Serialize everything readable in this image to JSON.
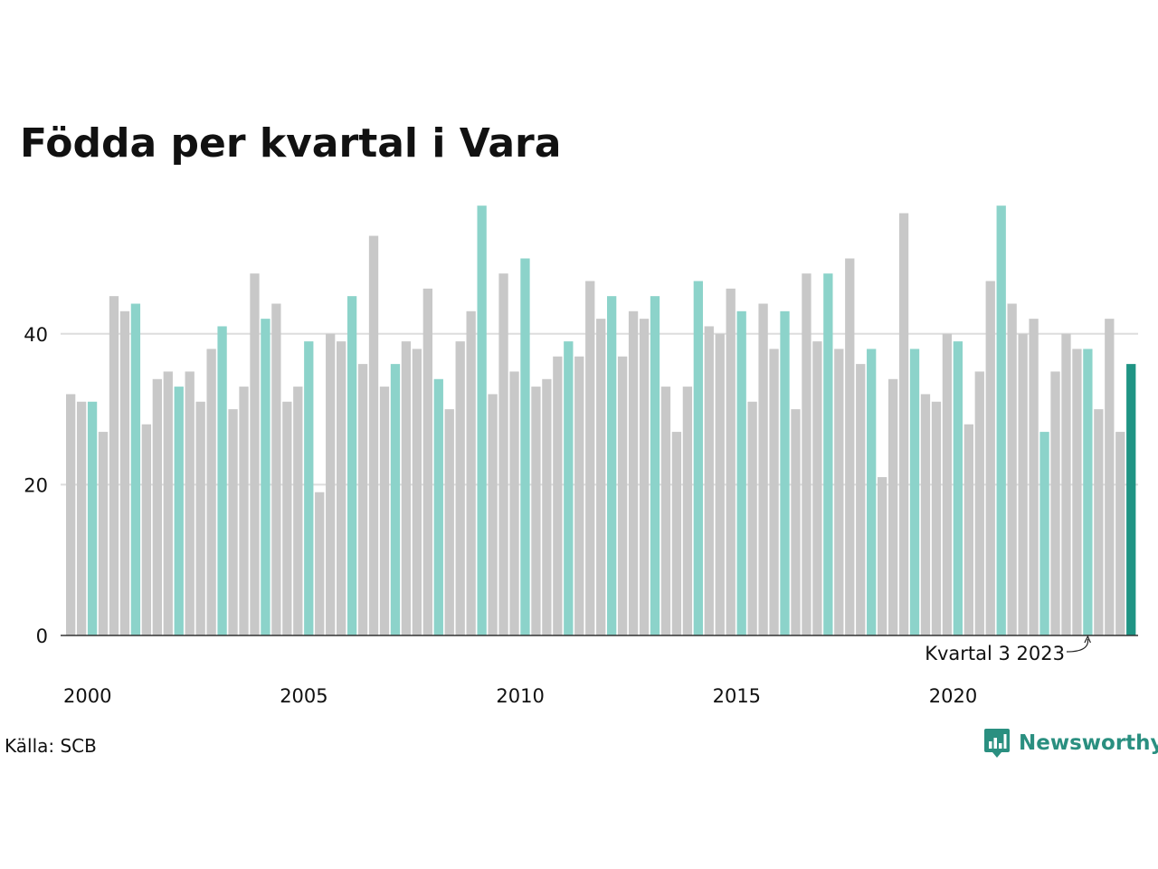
{
  "title": "Födda per kvartal i Vara",
  "source": "Källa: SCB",
  "brand": {
    "name": "Newsworthy",
    "icon": "newsworthy-logo-icon"
  },
  "annotation": {
    "text": "Kvartal 3 2023",
    "target_index": 94
  },
  "colors": {
    "default_bar": "#c8c8c8",
    "quarter_bar": "#8cd3ca",
    "latest_bar": "#1f9484",
    "gridline": "#dddddd",
    "baseline": "#333333",
    "brand": "#2a8f80"
  },
  "chart_data": {
    "type": "bar",
    "title": "Födda per kvartal i Vara",
    "xlabel": "",
    "ylabel": "",
    "ylim": [
      0,
      57
    ],
    "y_ticks": [
      0,
      20,
      40
    ],
    "x_tick_labels": [
      "2000",
      "2005",
      "2010",
      "2015",
      "2020"
    ],
    "x_tick_years": [
      2000,
      2005,
      2010,
      2015,
      2020
    ],
    "start_year": 2000,
    "grid": true,
    "legend": "none",
    "highlight_quarter": 3,
    "values": [
      32,
      31,
      31,
      27,
      45,
      43,
      44,
      28,
      34,
      35,
      33,
      35,
      31,
      38,
      41,
      30,
      33,
      48,
      42,
      44,
      31,
      33,
      39,
      19,
      40,
      39,
      45,
      36,
      53,
      33,
      36,
      39,
      38,
      46,
      34,
      30,
      39,
      43,
      57,
      32,
      48,
      35,
      50,
      33,
      34,
      37,
      39,
      37,
      47,
      42,
      45,
      37,
      43,
      42,
      45,
      33,
      27,
      33,
      47,
      41,
      40,
      46,
      43,
      31,
      44,
      38,
      43,
      30,
      48,
      39,
      48,
      38,
      50,
      36,
      38,
      21,
      34,
      56,
      38,
      32,
      31,
      40,
      39,
      28,
      35,
      47,
      57,
      44,
      40,
      42,
      27,
      35,
      40,
      38,
      38,
      30,
      42,
      27,
      36
    ]
  }
}
